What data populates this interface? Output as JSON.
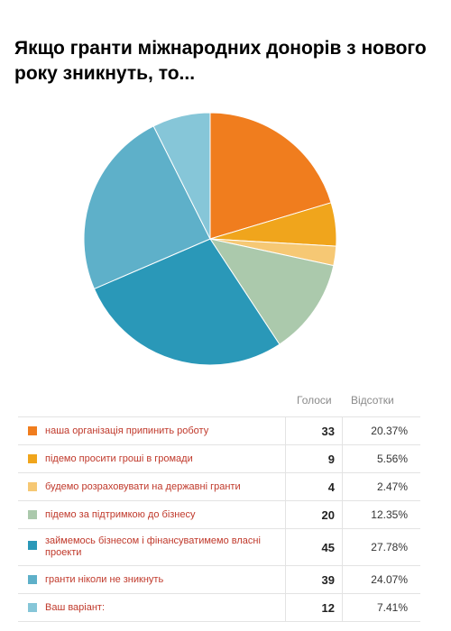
{
  "chart_data": {
    "type": "pie",
    "title": "Якщо гранти міжнародних донорів з нового року зникнуть, то...",
    "columns": {
      "votes": "Голоси",
      "percent": "Відсотки"
    },
    "slices": [
      {
        "label": "наша організація припинить роботу",
        "votes": "33",
        "percent": "20.37%",
        "value": 20.37,
        "color": "#f07d1e"
      },
      {
        "label": "підемо просити гроші в громади",
        "votes": "9",
        "percent": "5.56%",
        "value": 5.56,
        "color": "#f0a51c"
      },
      {
        "label": "будемо розраховувати на державні гранти",
        "votes": "4",
        "percent": "2.47%",
        "value": 2.47,
        "color": "#f6c874"
      },
      {
        "label": "підемо за підтримкою до бізнесу",
        "votes": "20",
        "percent": "12.35%",
        "value": 12.35,
        "color": "#abc9ac"
      },
      {
        "label": "займемось бізнесом і фінансуватимемо власні проекти",
        "votes": "45",
        "percent": "27.78%",
        "value": 27.78,
        "color": "#2a98b8"
      },
      {
        "label": "гранти ніколи не зникнуть",
        "votes": "39",
        "percent": "24.07%",
        "value": 24.07,
        "color": "#5eb0c9"
      },
      {
        "label": "Ваш варіант:",
        "votes": "12",
        "percent": "7.41%",
        "value": 7.41,
        "color": "#86c6d8"
      }
    ]
  }
}
